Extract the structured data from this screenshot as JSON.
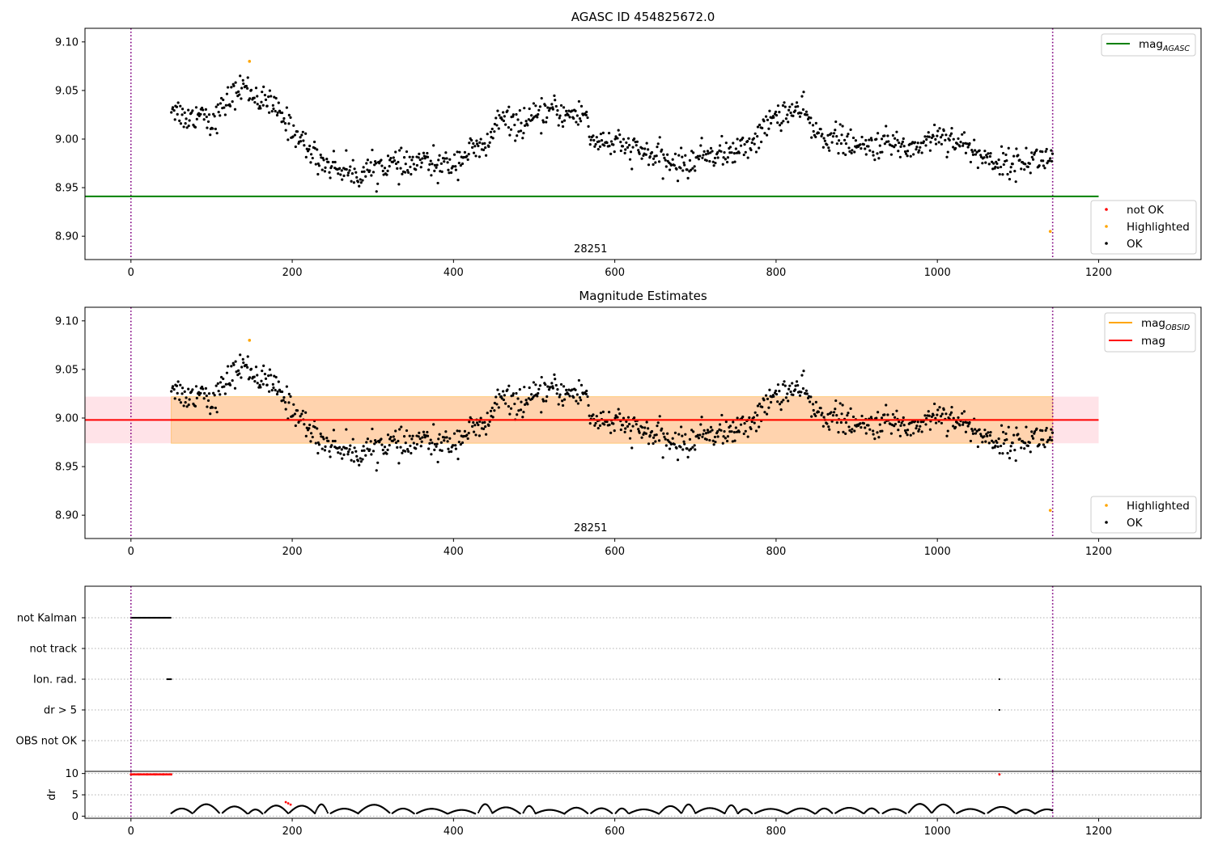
{
  "chart_data": [
    {
      "type": "scatter",
      "title": "AGASC ID 454825672.0",
      "xlim": [
        -57,
        1327
      ],
      "ylim": [
        8.876,
        9.114
      ],
      "xticks": [
        0,
        200,
        400,
        600,
        800,
        1000,
        1200
      ],
      "yticks": [
        8.9,
        8.95,
        9.0,
        9.05,
        9.1
      ],
      "obsid_label": "28251",
      "vlines": [
        0,
        1143
      ],
      "hlines": [
        {
          "name": "mag_AGASC",
          "y": 8.941,
          "x_range": [
            -57,
            1200
          ],
          "color": "#008000"
        }
      ],
      "series": [
        {
          "name": "not OK",
          "color": "#ff0000",
          "points": []
        },
        {
          "name": "Highlighted",
          "color": "#ffa500",
          "points": [
            [
              147,
              9.08
            ],
            [
              1140,
              8.905
            ]
          ]
        },
        {
          "name": "OK",
          "color": "#000000",
          "profile": [
            [
              50,
              9.035
            ],
            [
              70,
              9.02
            ],
            [
              90,
              9.03
            ],
            [
              100,
              9.015
            ],
            [
              120,
              9.04
            ],
            [
              140,
              9.055
            ],
            [
              160,
              9.04
            ],
            [
              175,
              9.035
            ],
            [
              190,
              9.02
            ],
            [
              210,
              9.0
            ],
            [
              225,
              8.985
            ],
            [
              240,
              8.975
            ],
            [
              260,
              8.97
            ],
            [
              280,
              8.963
            ],
            [
              300,
              8.97
            ],
            [
              320,
              8.975
            ],
            [
              340,
              8.97
            ],
            [
              360,
              8.978
            ],
            [
              380,
              8.972
            ],
            [
              400,
              8.975
            ],
            [
              420,
              8.988
            ],
            [
              440,
              8.99
            ],
            [
              455,
              9.02
            ],
            [
              480,
              9.015
            ],
            [
              500,
              9.02
            ],
            [
              520,
              9.03
            ],
            [
              540,
              9.025
            ],
            [
              565,
              9.025
            ],
            [
              570,
              9.0
            ],
            [
              600,
              8.995
            ],
            [
              640,
              8.985
            ],
            [
              670,
              8.975
            ],
            [
              690,
              8.973
            ],
            [
              710,
              8.985
            ],
            [
              740,
              8.985
            ],
            [
              760,
              8.99
            ],
            [
              780,
              9.005
            ],
            [
              800,
              9.025
            ],
            [
              830,
              9.03
            ],
            [
              840,
              9.02
            ],
            [
              850,
              9.005
            ],
            [
              880,
              9.0
            ],
            [
              900,
              8.99
            ],
            [
              930,
              8.995
            ],
            [
              950,
              8.995
            ],
            [
              970,
              8.99
            ],
            [
              1000,
              9.005
            ],
            [
              1020,
              9.0
            ],
            [
              1040,
              8.99
            ],
            [
              1060,
              8.98
            ],
            [
              1080,
              8.975
            ],
            [
              1100,
              8.975
            ],
            [
              1120,
              8.98
            ],
            [
              1143,
              8.98
            ]
          ],
          "spread": 0.012,
          "count": 1000
        }
      ],
      "legend": {
        "lines": [
          "mag_AGASC"
        ],
        "points": [
          "not OK",
          "Highlighted",
          "OK"
        ]
      }
    },
    {
      "type": "scatter",
      "title": "Magnitude Estimates",
      "xlim": [
        -57,
        1327
      ],
      "ylim": [
        8.876,
        9.114
      ],
      "xticks": [
        0,
        200,
        400,
        600,
        800,
        1000,
        1200
      ],
      "yticks": [
        8.9,
        8.95,
        9.0,
        9.05,
        9.1
      ],
      "obsid_label": "28251",
      "vlines": [
        0,
        1143
      ],
      "bands": [
        {
          "y": [
            8.974,
            9.022
          ],
          "x_range": [
            -57,
            1200
          ],
          "color": "#ffc0cb",
          "alpha": 0.45
        },
        {
          "y": [
            8.974,
            9.022
          ],
          "x_range": [
            50,
            1143
          ],
          "color": "#ffa500",
          "alpha": 0.25
        }
      ],
      "hlines": [
        {
          "name": "mag_OBSID",
          "y": 8.998,
          "x_range": [
            50,
            1143
          ],
          "color": "#ffa500"
        },
        {
          "name": "mag",
          "y": 8.998,
          "x_range": [
            -57,
            1200
          ],
          "color": "#ff0000"
        }
      ],
      "series": [
        {
          "name": "Highlighted",
          "color": "#ffa500",
          "points": [
            [
              147,
              9.08
            ],
            [
              1140,
              8.905
            ]
          ]
        },
        {
          "name": "OK",
          "color": "#000000",
          "same_as_panel": 0
        }
      ],
      "legend": {
        "lines": [
          "mag_OBSID",
          "mag"
        ],
        "points": [
          "Highlighted",
          "OK"
        ]
      }
    },
    {
      "type": "scatter",
      "title": "",
      "xlim": [
        -57,
        1327
      ],
      "xticks": [
        0,
        200,
        400,
        600,
        800,
        1000,
        1200
      ],
      "vlines": [
        0,
        1143
      ],
      "flag_rows": [
        "not Kalman",
        "not track",
        "Ion. rad.",
        "dr > 5",
        "OBS not OK"
      ],
      "flags": {
        "not Kalman": [
          [
            0,
            50
          ]
        ],
        "not track": [],
        "Ion. rad.": [
          [
            45,
            50
          ],
          [
            1077,
            1077
          ]
        ],
        "dr > 5": [
          [
            1077,
            1077
          ]
        ],
        "OBS not OK": []
      }
    },
    {
      "type": "scatter",
      "title": "",
      "ylabel": "dr",
      "xlim": [
        -57,
        1327
      ],
      "ylim": [
        -0.5,
        10.5
      ],
      "xticks": [
        0,
        200,
        400,
        600,
        800,
        1000,
        1200
      ],
      "yticks": [
        0,
        5,
        10
      ],
      "vlines": [
        0,
        1143
      ],
      "series": [
        {
          "name": "dr > 5",
          "color": "#ff0000",
          "points": [
            [
              0,
              9.8
            ],
            [
              10,
              9.8
            ],
            [
              20,
              9.8
            ],
            [
              30,
              9.8
            ],
            [
              40,
              9.8
            ],
            [
              50,
              9.8
            ],
            [
              192,
              3.3
            ],
            [
              195,
              3.0
            ],
            [
              198,
              2.7
            ],
            [
              1077,
              9.8
            ]
          ]
        },
        {
          "name": "dr",
          "color": "#000000",
          "range": [
            50,
            1143
          ],
          "typical": [
            0.5,
            2.5
          ]
        }
      ]
    }
  ],
  "legend_labels": {
    "mag_AGASC": {
      "base": "mag",
      "sub": "AGASC"
    },
    "mag_OBSID": {
      "base": "mag",
      "sub": "OBSID"
    },
    "mag": "mag",
    "not OK": "not OK",
    "Highlighted": "Highlighted",
    "OK": "OK"
  }
}
